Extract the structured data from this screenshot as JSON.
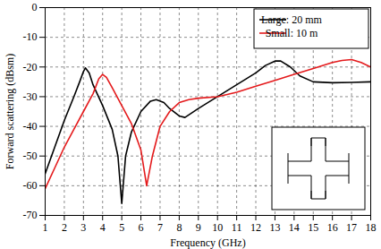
{
  "chart_data": {
    "type": "line",
    "x_label": "Frequency (GHz)",
    "y_label": "Forward scattering (dBsm)",
    "xlim": [
      1,
      18
    ],
    "xticks": [
      1,
      2,
      3,
      4,
      5,
      6,
      7,
      8,
      9,
      10,
      11,
      12,
      13,
      14,
      15,
      16,
      17,
      18
    ],
    "ylim": [
      -70,
      0
    ],
    "yticks": [
      -70,
      -60,
      -50,
      -40,
      -30,
      -20,
      -10,
      0
    ],
    "grid": true,
    "legend": "upper right",
    "series": [
      {
        "name": "Large: 20 mm",
        "color": "#000000",
        "x": [
          1,
          1.5,
          2,
          2.5,
          2.8,
          3.0,
          3.1,
          3.3,
          3.5,
          4,
          4.5,
          4.8,
          5.0,
          5.2,
          5.5,
          6,
          6.5,
          6.8,
          7.2,
          7.5,
          8,
          8.3,
          9,
          10,
          11,
          12,
          12.5,
          13,
          13.3,
          13.8,
          14.3,
          15,
          16,
          17,
          18
        ],
        "values": [
          -56,
          -47,
          -38,
          -30,
          -25,
          -21.5,
          -20.3,
          -22,
          -26,
          -33,
          -41,
          -50,
          -66,
          -50,
          -42,
          -35,
          -31.5,
          -31,
          -32,
          -34,
          -36.5,
          -37,
          -34,
          -30,
          -26,
          -22,
          -19.5,
          -18,
          -18,
          -20,
          -23,
          -25,
          -25.3,
          -25.2,
          -25
        ]
      },
      {
        "name": "Small: 10 m",
        "color": "#e41a1c",
        "x": [
          1,
          1.5,
          2,
          2.5,
          3,
          3.5,
          3.8,
          4.0,
          4.2,
          4.5,
          5,
          5.5,
          6,
          6.3,
          6.6,
          7,
          7.5,
          8,
          8.5,
          9,
          10,
          11,
          12,
          13,
          14,
          15,
          16,
          16.5,
          17,
          17.5,
          18
        ],
        "values": [
          -61,
          -54,
          -47,
          -41,
          -35,
          -29,
          -24,
          -22.5,
          -23.5,
          -27,
          -33,
          -39,
          -48,
          -60,
          -50,
          -40,
          -35,
          -32,
          -31,
          -30.5,
          -30,
          -28.5,
          -26.5,
          -24.5,
          -22.5,
          -20.5,
          -18.5,
          -17.8,
          -17.5,
          -18.5,
          -20
        ]
      }
    ]
  }
}
